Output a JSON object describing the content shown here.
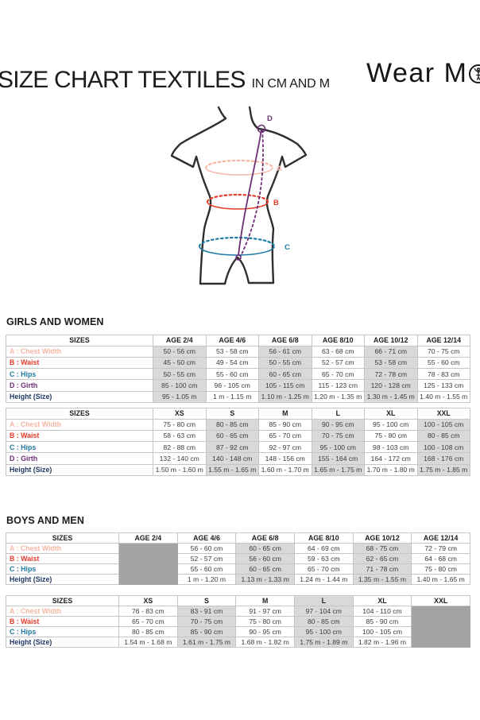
{
  "header": {
    "title": "SIZE CHART TEXTILES",
    "subtitle": "IN CM AND M",
    "brand_prefix": "Wear M",
    "brand_suffix": "i"
  },
  "colors": {
    "chest": "#f5b7a3",
    "waist": "#e63a28",
    "hips": "#1f7ba3",
    "girth": "#6e2f75",
    "height": "#1f3864",
    "shaded": "#d9d9d9",
    "blocked": "#a3a3a3",
    "outline": "#2f2f2f"
  },
  "diagram": {
    "labels": {
      "chest": "A",
      "waist": "B",
      "hips": "C",
      "girth": "D"
    }
  },
  "sections": [
    {
      "title": "GIRLS AND WOMEN",
      "tables": [
        {
          "columns": [
            "SIZES",
            "AGE 2/4",
            "AGE 4/6",
            "AGE 6/8",
            "AGE 8/10",
            "AGE 10/12",
            "AGE 12/14"
          ],
          "shaded_cols": [
            1,
            3,
            5
          ],
          "shaded_header_cols": [],
          "blocked_col": null,
          "rows": [
            {
              "key": "chest",
              "label": "A : Chest Width",
              "values": [
                "50 - 56 cm",
                "53 - 58 cm",
                "56 - 61 cm",
                "63 - 68 cm",
                "66 - 71 cm",
                "70 - 75 cm"
              ]
            },
            {
              "key": "waist",
              "label": "B : Waist",
              "values": [
                "45 - 50 cm",
                "49 - 54 cm",
                "50 - 55 cm",
                "52 - 57 cm",
                "53 - 58 cm",
                "55 - 60 cm"
              ]
            },
            {
              "key": "hips",
              "label": "C : Hips",
              "values": [
                "50 - 55 cm",
                "55 - 60 cm",
                "60 - 65 cm",
                "65 - 70 cm",
                "72 - 78 cm",
                "78 - 83 cm"
              ]
            },
            {
              "key": "girth",
              "label": "D : Girth",
              "values": [
                "85 - 100 cm",
                "96 - 105 cm",
                "105 - 115 cm",
                "115 - 123 cm",
                "120 - 128 cm",
                "125 - 133 cm"
              ]
            },
            {
              "key": "height",
              "label": "Height (Size)",
              "values": [
                "95 - 1.05 m",
                "1 m - 1.15 m",
                "1.10 m - 1.25 m",
                "1.20 m - 1.35 m",
                "1.30 m - 1.45 m",
                "1.40 m - 1.55 m"
              ]
            }
          ]
        },
        {
          "columns": [
            "SIZES",
            "XS",
            "S",
            "M",
            "L",
            "XL",
            "XXL"
          ],
          "shaded_cols": [
            2,
            4,
            6
          ],
          "shaded_header_cols": [],
          "blocked_col": null,
          "rows": [
            {
              "key": "chest",
              "label": "A : Chest Width",
              "values": [
                "75 - 80 cm",
                "80 - 85 cm",
                "85 - 90 cm",
                "90 - 95 cm",
                "95 - 100 cm",
                "100 - 105 cm"
              ]
            },
            {
              "key": "waist",
              "label": "B : Waist",
              "values": [
                "58 - 63 cm",
                "60 - 65 cm",
                "65 - 70 cm",
                "70 - 75 cm",
                "75 - 80 cm",
                "80 - 85 cm"
              ]
            },
            {
              "key": "hips",
              "label": "C : Hips",
              "values": [
                "82 - 88 cm",
                "87 - 92 cm",
                "92 - 97 cm",
                "95 - 100 cm",
                "98 - 103 cm",
                "100 - 108 cm"
              ]
            },
            {
              "key": "girth",
              "label": "D : Girth",
              "values": [
                "132 - 140 cm",
                "140 - 148 cm",
                "148 - 156 cm",
                "155 - 164 cm",
                "164 - 172 cm",
                "168 - 176 cm"
              ]
            },
            {
              "key": "height",
              "label": "Height (Size)",
              "values": [
                "1.50 m - 1.60 m",
                "1.55 m - 1.65 m",
                "1.60 m - 1.70 m",
                "1.65 m - 1.75 m",
                "1.70 m - 1.80 m",
                "1.75 m - 1.85 m"
              ]
            }
          ]
        }
      ]
    },
    {
      "title": "BOYS AND MEN",
      "tables": [
        {
          "columns": [
            "SIZES",
            "AGE 2/4",
            "AGE 4/6",
            "AGE 6/8",
            "AGE 8/10",
            "AGE 10/12",
            "AGE 12/14"
          ],
          "shaded_cols": [
            3,
            5
          ],
          "shaded_header_cols": [],
          "blocked_col": 1,
          "rows": [
            {
              "key": "chest",
              "label": "A : Chest Width",
              "values": [
                "",
                "56 - 60 cm",
                "60 - 65 cm",
                "64 - 69 cm",
                "68 - 75 cm",
                "72 - 79 cm"
              ]
            },
            {
              "key": "waist",
              "label": "B : Waist",
              "values": [
                "",
                "52 - 57 cm",
                "56 - 60 cm",
                "59 - 63 cm",
                "62 - 65 cm",
                "64 - 68 cm"
              ]
            },
            {
              "key": "hips",
              "label": "C : Hips",
              "values": [
                "",
                "55 - 60 cm",
                "60 - 65 cm",
                "65 - 70 cm",
                "71 - 78 cm",
                "75 - 80 cm"
              ]
            },
            {
              "key": "height",
              "label": "Height (Size)",
              "values": [
                "",
                "1 m - 1.20 m",
                "1.13 m - 1.33 m",
                "1.24 m - 1.44 m",
                "1.35 m - 1.55 m",
                "1.40 m - 1.65 m"
              ]
            }
          ]
        },
        {
          "columns": [
            "SIZES",
            "XS",
            "S",
            "M",
            "L",
            "XL",
            "XXL"
          ],
          "shaded_cols": [
            2,
            4
          ],
          "shaded_header_cols": [
            4
          ],
          "blocked_col": 6,
          "rows": [
            {
              "key": "chest",
              "label": "A : Chest Width",
              "values": [
                "76 - 83 cm",
                "83 - 91 cm",
                "91 - 97 cm",
                "97 - 104 cm",
                "104 - 110 cm",
                ""
              ]
            },
            {
              "key": "waist",
              "label": "B : Waist",
              "values": [
                "65 - 70 cm",
                "70 - 75 cm",
                "75 - 80 cm",
                "80 - 85 cm",
                "85 - 90 cm",
                ""
              ]
            },
            {
              "key": "hips",
              "label": "C : Hips",
              "values": [
                "80 - 85 cm",
                "85 - 90 cm",
                "90 - 95 cm",
                "95 - 100 cm",
                "100 - 105 cm",
                ""
              ]
            },
            {
              "key": "height",
              "label": "Height (Size)",
              "values": [
                "1.54 m - 1.68 m",
                "1.61 m - 1.75 m",
                "1.68 m - 1.82 m",
                "1.75 m - 1.89 m",
                "1.82 m - 1.96 m",
                ""
              ]
            }
          ]
        }
      ]
    }
  ]
}
